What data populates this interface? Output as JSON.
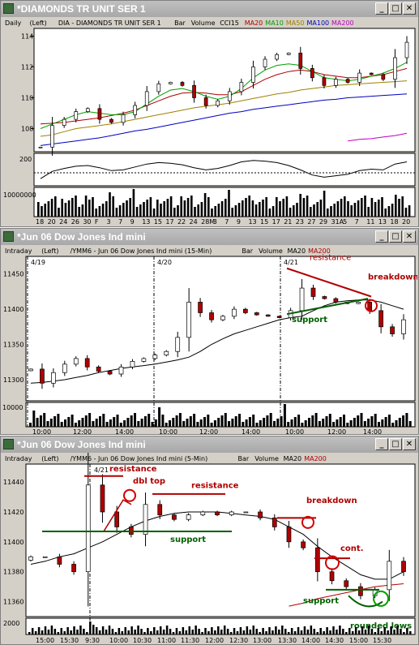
{
  "window1": {
    "title": "*DIAMONDS TR UNIT SER 1",
    "header": [
      {
        "text": "Daily",
        "color": "#000000"
      },
      {
        "text": "(Left)",
        "color": "#000000"
      },
      {
        "text": "DIA - DIAMONDS TR UNIT SER 1",
        "color": "#000000"
      },
      {
        "text": "Bar",
        "color": "#000000"
      },
      {
        "text": "Volume",
        "color": "#000000"
      },
      {
        "text": "CCI15",
        "color": "#000000"
      },
      {
        "text": "MA20",
        "color": "#b00000"
      },
      {
        "text": "MA10",
        "color": "#00a000"
      },
      {
        "text": "MA50",
        "color": "#a08000"
      },
      {
        "text": "MA100",
        "color": "#0000c0"
      },
      {
        "text": "MA200",
        "color": "#c000c0"
      }
    ],
    "price_ticks": [
      "114",
      "112",
      "110",
      "108"
    ],
    "cci_tick": "200",
    "volume_tick": "10000000",
    "x_labels": [
      "18",
      "20",
      "24",
      "26",
      "30",
      "F",
      "3",
      "7",
      "9",
      "13",
      "15",
      "17",
      "22",
      "24",
      "28M",
      "3",
      "7",
      "9",
      "13",
      "15",
      "17",
      "21",
      "23",
      "27",
      "29",
      "31A",
      "5",
      "7",
      "11",
      "13",
      "18",
      "20"
    ]
  },
  "window2": {
    "title": "*Jun 06 Dow Jones Ind mini",
    "header": [
      {
        "text": "Intraday",
        "color": "#000000"
      },
      {
        "text": "(Left)",
        "color": "#000000"
      },
      {
        "text": "/YMM6 - Jun 06 Dow Jones Ind mini (15-Min)",
        "color": "#000000"
      },
      {
        "text": "Bar",
        "color": "#000000"
      },
      {
        "text": "Volume",
        "color": "#000000"
      },
      {
        "text": "MA20",
        "color": "#000000"
      },
      {
        "text": "MA200",
        "color": "#b00000"
      }
    ],
    "date_markers": [
      "4/19",
      "4/20",
      "4/21"
    ],
    "price_ticks": [
      "11450",
      "11400",
      "11350",
      "11300"
    ],
    "volume_tick": "10000",
    "x_labels": [
      "10:00",
      "12:00",
      "14:00",
      "10:00",
      "12:00",
      "14:00",
      "10:00",
      "12:00",
      "14:00"
    ],
    "annotations": {
      "resistance": "resistance",
      "breakdown": "breakdown",
      "support": "support"
    }
  },
  "window3": {
    "title": "*Jun 06 Dow Jones Ind mini",
    "header": [
      {
        "text": "Intraday",
        "color": "#000000"
      },
      {
        "text": "(Left)",
        "color": "#000000"
      },
      {
        "text": "/YMM6 - Jun 06 Dow Jones Ind mini (5-Min)",
        "color": "#000000"
      },
      {
        "text": "Bar",
        "color": "#000000"
      },
      {
        "text": "Volume",
        "color": "#000000"
      },
      {
        "text": "MA20",
        "color": "#000000"
      },
      {
        "text": "MA200",
        "color": "#b00000"
      }
    ],
    "date_marker": "4/21",
    "price_ticks": [
      "11440",
      "11420",
      "11400",
      "11380",
      "11360"
    ],
    "volume_tick": "2000",
    "x_labels": [
      "15:00",
      "15:30",
      "9:30",
      "10:00",
      "10:30",
      "11:00",
      "11:30",
      "12:00",
      "12:30",
      "13:00",
      "13:30",
      "14:00",
      "14:30",
      "15:00",
      "15:30"
    ],
    "annotations": {
      "resistance1": "resistance",
      "dbl_top": "dbl top",
      "resistance2": "resistance",
      "support1": "support",
      "breakdown": "breakdown",
      "cont": "cont.",
      "support2": "support",
      "rounded_lows": "rounded lows"
    }
  },
  "chart_data": [
    {
      "type": "candlestick",
      "title": "DIA - DIAMONDS TR UNIT SER 1",
      "ylim": [
        106.5,
        114.5
      ],
      "categories": [
        "18",
        "20",
        "24",
        "26",
        "30",
        "F",
        "3",
        "7",
        "9",
        "13",
        "15",
        "17",
        "22",
        "24",
        "28M",
        "3",
        "7",
        "9",
        "13",
        "15",
        "17",
        "21",
        "23",
        "27",
        "29",
        "31A",
        "5",
        "7",
        "11",
        "13",
        "18",
        "20"
      ],
      "series": [
        {
          "name": "MA200",
          "values": [
            null,
            null,
            null,
            null,
            null,
            null,
            null,
            null,
            null,
            null,
            null,
            null,
            null,
            null,
            null,
            null,
            null,
            null,
            null,
            null,
            null,
            null,
            null,
            null,
            null,
            null,
            107.2,
            107.3,
            107.35,
            107.45,
            107.55,
            107.7
          ]
        },
        {
          "name": "MA100",
          "values": [
            106.9,
            107.0,
            107.1,
            107.2,
            107.3,
            107.4,
            107.55,
            107.7,
            107.85,
            107.95,
            108.1,
            108.25,
            108.4,
            108.55,
            108.7,
            108.85,
            109.0,
            109.1,
            109.25,
            109.35,
            109.45,
            109.55,
            109.65,
            109.75,
            109.85,
            109.9,
            110.0,
            110.05,
            110.1,
            110.15,
            110.2,
            110.25
          ]
        },
        {
          "name": "MA50",
          "values": [
            107.5,
            107.6,
            107.8,
            108.0,
            108.1,
            108.2,
            108.3,
            108.45,
            108.6,
            108.75,
            108.9,
            109.05,
            109.2,
            109.35,
            109.45,
            109.55,
            109.65,
            109.8,
            109.95,
            110.1,
            110.25,
            110.35,
            110.5,
            110.6,
            110.7,
            110.8,
            110.85,
            110.9,
            110.95,
            111.0,
            111.05,
            111.1
          ]
        },
        {
          "name": "MA20",
          "values": [
            108.3,
            108.35,
            108.4,
            108.5,
            108.6,
            108.7,
            108.85,
            109.0,
            109.2,
            109.5,
            109.8,
            110.1,
            110.3,
            110.35,
            110.3,
            110.2,
            110.2,
            110.4,
            110.8,
            111.2,
            111.5,
            111.7,
            111.8,
            111.7,
            111.5,
            111.4,
            111.3,
            111.3,
            111.4,
            111.5,
            111.7,
            111.9
          ]
        },
        {
          "name": "MA10",
          "values": [
            108.0,
            108.3,
            108.6,
            108.9,
            109.1,
            109.0,
            108.9,
            108.9,
            109.1,
            109.6,
            110.1,
            110.5,
            110.6,
            110.4,
            110.1,
            109.9,
            110.1,
            110.6,
            111.3,
            111.8,
            112.1,
            112.2,
            112.1,
            111.7,
            111.3,
            111.2,
            111.1,
            111.2,
            111.4,
            111.6,
            111.9,
            112.3
          ]
        },
        {
          "name": "Close",
          "values": [
            106.8,
            108.2,
            108.6,
            109.1,
            109.3,
            108.6,
            108.4,
            108.9,
            109.5,
            110.4,
            110.9,
            111.0,
            110.8,
            110.0,
            109.5,
            109.8,
            110.4,
            111.0,
            112.0,
            112.5,
            112.8,
            112.9,
            111.9,
            111.3,
            110.8,
            111.2,
            111.0,
            111.6,
            111.5,
            111.2,
            112.6,
            113.6
          ]
        }
      ]
    },
    {
      "type": "candlestick",
      "title": "/YMM6 - Jun 06 Dow Jones Ind mini (15-Min)",
      "ylim": [
        11270,
        11475
      ],
      "series": [
        {
          "name": "MA20",
          "values": [
            11295,
            11296,
            11298,
            11300,
            11303,
            11306,
            11310,
            11313,
            11316,
            11318,
            11320,
            11322,
            11325,
            11328,
            11332,
            11340,
            11350,
            11358,
            11365,
            11370,
            11375,
            11380,
            11385,
            11388,
            11390,
            11398,
            11405,
            11410,
            11412,
            11413,
            11413,
            11410,
            11405,
            11400
          ]
        },
        {
          "name": "Close",
          "values": [
            11315,
            11295,
            11310,
            11322,
            11330,
            11318,
            11312,
            11308,
            11318,
            11326,
            11330,
            11335,
            11340,
            11360,
            11410,
            11395,
            11385,
            11390,
            11400,
            11395,
            11392,
            11390,
            11388,
            11398,
            11430,
            11418,
            11415,
            11410,
            11408,
            11410,
            11398,
            11375,
            11365,
            11385
          ]
        }
      ]
    },
    {
      "type": "candlestick",
      "title": "/YMM6 - Jun 06 Dow Jones Ind mini (5-Min)",
      "ylim": [
        11350,
        11452
      ],
      "series": [
        {
          "name": "MA20",
          "values": [
            11385,
            11387,
            11390,
            11392,
            11396,
            11400,
            11405,
            11410,
            11414,
            11417,
            11419,
            11420,
            11420,
            11420,
            11419,
            11418,
            11417,
            11415,
            11410,
            11405,
            11397,
            11390,
            11384,
            11378,
            11375,
            11375,
            11380
          ]
        },
        {
          "name": "MA200",
          "values": [
            null,
            null,
            null,
            null,
            null,
            null,
            null,
            null,
            null,
            null,
            null,
            null,
            null,
            null,
            null,
            null,
            null,
            null,
            11357,
            11359,
            11362,
            11364,
            11366,
            11368,
            11370,
            11371,
            11372
          ]
        },
        {
          "name": "Close",
          "values": [
            11390,
            11390,
            11385,
            11380,
            11438,
            11420,
            11410,
            11405,
            11425,
            11418,
            11415,
            11418,
            11420,
            11418,
            11420,
            11420,
            11416,
            11410,
            11400,
            11396,
            11380,
            11374,
            11370,
            11364,
            11368,
            11387,
            11380
          ]
        }
      ]
    }
  ]
}
